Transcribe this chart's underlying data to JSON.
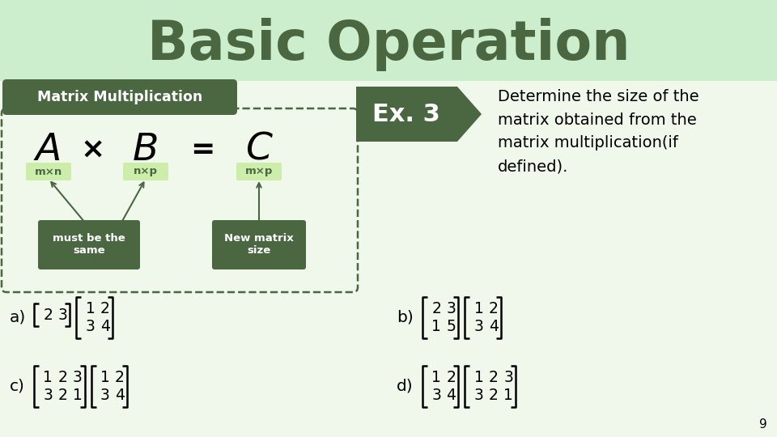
{
  "title": "Basic Operation",
  "title_color": "#4a6741",
  "title_fontsize": 48,
  "slide_bg": "#f0f7eb",
  "header_bg": "#cceecc",
  "dark_green": "#4a6741",
  "light_green": "#cceeaa",
  "white": "#ffffff",
  "label_mm": "Matrix Multiplication",
  "ex_text": "Ex. 3",
  "desc_text": "Determine the size of the\nmatrix obtained from the\nmatrix multiplication(if\ndefined).",
  "page_num": "9",
  "formula_letters": [
    "A",
    "×",
    "B",
    "=",
    "C"
  ],
  "size_labels": [
    "m×n",
    "n×p",
    "m×p"
  ],
  "must_text": "must be the\nsame",
  "new_text": "New matrix\nsize"
}
